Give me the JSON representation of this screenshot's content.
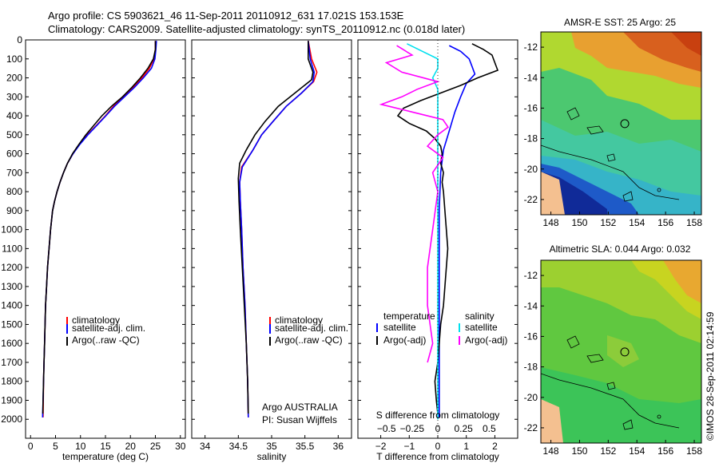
{
  "header": {
    "line1": "Argo profile: CS 5903621_46 11-Sep-2011 20110912_631 17.021S 153.153E",
    "line2": "Climatology: CARS2009. Satellite-adjusted climatology: synTS_20110912.nc (0.018d later)"
  },
  "colors": {
    "climatology": "#ff0000",
    "satellite": "#0000ff",
    "argo": "#000000",
    "satellite_s": "#00e0ee",
    "argo_s": "#ff00ff"
  },
  "chart_data": [
    {
      "type": "line",
      "id": "temperature",
      "xlabel": "temperature (deg C)",
      "ylabel": "",
      "xlim": [
        -1,
        31
      ],
      "ylim": [
        2100,
        0
      ],
      "xticks": [
        0,
        5,
        10,
        15,
        20,
        25,
        30
      ],
      "xticklabels": [
        "0",
        "5",
        "10",
        "15",
        "20",
        "25",
        "30"
      ],
      "yticks": [
        0,
        100,
        200,
        300,
        400,
        500,
        600,
        700,
        800,
        900,
        1000,
        1100,
        1200,
        1300,
        1400,
        1500,
        1600,
        1700,
        1800,
        1900,
        2000
      ],
      "legend": [
        "climatology",
        "satellite-adj. clim.",
        "Argo(..raw -QC)"
      ],
      "series": [
        {
          "name": "climatology",
          "color": "#ff0000",
          "points": [
            [
              25,
              5
            ],
            [
              25.0,
              50
            ],
            [
              24.7,
              100
            ],
            [
              23.8,
              150
            ],
            [
              22.3,
              200
            ],
            [
              20.5,
              250
            ],
            [
              18.6,
              300
            ],
            [
              16.6,
              350
            ],
            [
              15.0,
              400
            ],
            [
              13.2,
              450
            ],
            [
              11.4,
              500
            ],
            [
              9.8,
              550
            ],
            [
              8.5,
              600
            ],
            [
              7.4,
              650
            ],
            [
              6.6,
              700
            ],
            [
              5.9,
              750
            ],
            [
              5.3,
              800
            ],
            [
              4.8,
              850
            ],
            [
              4.4,
              900
            ],
            [
              4.0,
              1000
            ],
            [
              3.7,
              1100
            ],
            [
              3.4,
              1200
            ],
            [
              3.2,
              1300
            ],
            [
              3.0,
              1400
            ],
            [
              2.9,
              1500
            ],
            [
              2.8,
              1600
            ],
            [
              2.7,
              1700
            ],
            [
              2.6,
              1800
            ],
            [
              2.55,
              1900
            ],
            [
              2.5,
              1990
            ]
          ]
        },
        {
          "name": "satellite-adj. clim.",
          "color": "#0000ff",
          "points": [
            [
              25.2,
              5
            ],
            [
              25.1,
              50
            ],
            [
              24.9,
              100
            ],
            [
              24.2,
              150
            ],
            [
              22.6,
              200
            ],
            [
              20.8,
              250
            ],
            [
              18.8,
              300
            ],
            [
              16.8,
              350
            ],
            [
              15.1,
              400
            ],
            [
              13.3,
              450
            ],
            [
              11.5,
              500
            ],
            [
              9.9,
              550
            ],
            [
              8.5,
              600
            ],
            [
              7.4,
              650
            ],
            [
              6.6,
              700
            ],
            [
              5.9,
              750
            ],
            [
              5.3,
              800
            ],
            [
              4.8,
              850
            ],
            [
              4.4,
              900
            ],
            [
              4.0,
              1000
            ],
            [
              3.7,
              1100
            ],
            [
              3.4,
              1200
            ],
            [
              3.2,
              1300
            ],
            [
              3.0,
              1400
            ],
            [
              2.9,
              1500
            ],
            [
              2.8,
              1600
            ],
            [
              2.7,
              1700
            ],
            [
              2.6,
              1800
            ],
            [
              2.5,
              1900
            ],
            [
              2.4,
              1990
            ]
          ]
        },
        {
          "name": "Argo(..raw -QC)",
          "color": "#000000",
          "points": [
            [
              25.0,
              5
            ],
            [
              25.0,
              50
            ],
            [
              24.6,
              100
            ],
            [
              23.5,
              150
            ],
            [
              22.0,
              200
            ],
            [
              20.3,
              250
            ],
            [
              18.4,
              300
            ],
            [
              16.2,
              350
            ],
            [
              14.3,
              400
            ],
            [
              12.7,
              450
            ],
            [
              11.1,
              500
            ],
            [
              9.7,
              550
            ],
            [
              8.4,
              600
            ],
            [
              7.4,
              650
            ],
            [
              6.6,
              700
            ],
            [
              5.9,
              750
            ],
            [
              5.3,
              800
            ],
            [
              4.8,
              850
            ],
            [
              4.4,
              900
            ],
            [
              4.0,
              1000
            ],
            [
              3.7,
              1100
            ],
            [
              3.4,
              1200
            ],
            [
              3.2,
              1300
            ],
            [
              3.0,
              1400
            ],
            [
              2.9,
              1500
            ],
            [
              2.8,
              1600
            ],
            [
              2.7,
              1700
            ],
            [
              2.6,
              1800
            ],
            [
              2.5,
              1900
            ],
            [
              2.45,
              1970
            ]
          ]
        }
      ]
    },
    {
      "type": "line",
      "id": "salinity",
      "xlabel": "salinity",
      "xlim": [
        33.8,
        36.2
      ],
      "ylim": [
        2100,
        0
      ],
      "xticks": [
        34,
        34.5,
        35,
        35.5,
        36
      ],
      "xticklabels": [
        "34",
        "34.5",
        "35",
        "35.5",
        "36"
      ],
      "legend": [
        "climatology",
        "satellite-adj. clim.",
        "Argo(..raw -QC)"
      ],
      "annotation_1": "Argo AUSTRALIA",
      "annotation_2": "PI: Susan Wijffels",
      "series": [
        {
          "name": "climatology",
          "color": "#ff0000",
          "points": [
            [
              35.55,
              5
            ],
            [
              35.6,
              100
            ],
            [
              35.68,
              170
            ],
            [
              35.63,
              220
            ],
            [
              35.45,
              280
            ],
            [
              35.22,
              350
            ],
            [
              35.02,
              430
            ],
            [
              34.85,
              500
            ],
            [
              34.72,
              580
            ],
            [
              34.55,
              670
            ],
            [
              34.52,
              750
            ],
            [
              34.53,
              850
            ],
            [
              34.55,
              1000
            ],
            [
              34.57,
              1200
            ],
            [
              34.6,
              1400
            ],
            [
              34.62,
              1600
            ],
            [
              34.64,
              1800
            ],
            [
              34.65,
              1990
            ]
          ]
        },
        {
          "name": "satellite-adj. clim.",
          "color": "#0000ff",
          "points": [
            [
              35.55,
              5
            ],
            [
              35.58,
              100
            ],
            [
              35.64,
              170
            ],
            [
              35.62,
              220
            ],
            [
              35.45,
              280
            ],
            [
              35.22,
              350
            ],
            [
              35.02,
              430
            ],
            [
              34.85,
              500
            ],
            [
              34.72,
              580
            ],
            [
              34.56,
              670
            ],
            [
              34.52,
              750
            ],
            [
              34.53,
              850
            ],
            [
              34.55,
              1000
            ],
            [
              34.57,
              1200
            ],
            [
              34.6,
              1400
            ],
            [
              34.62,
              1600
            ],
            [
              34.64,
              1800
            ],
            [
              34.65,
              1990
            ]
          ]
        },
        {
          "name": "Argo(..raw -QC)",
          "color": "#000000",
          "points": [
            [
              35.55,
              5
            ],
            [
              35.55,
              100
            ],
            [
              35.62,
              170
            ],
            [
              35.6,
              210
            ],
            [
              35.35,
              280
            ],
            [
              35.1,
              350
            ],
            [
              34.9,
              430
            ],
            [
              34.75,
              500
            ],
            [
              34.62,
              580
            ],
            [
              34.52,
              650
            ],
            [
              34.5,
              730
            ],
            [
              34.51,
              850
            ],
            [
              34.53,
              1000
            ],
            [
              34.56,
              1200
            ],
            [
              34.59,
              1400
            ],
            [
              34.62,
              1600
            ],
            [
              34.64,
              1800
            ],
            [
              34.65,
              1970
            ]
          ]
        }
      ]
    },
    {
      "type": "line",
      "id": "differences",
      "xlabel_bottom": "T difference from climatology",
      "xlabel_top": "S difference from climatology",
      "xlim": [
        -2.8,
        2.8
      ],
      "ylim": [
        2100,
        0
      ],
      "xticks_T": [
        -2,
        -1,
        0,
        1,
        2
      ],
      "xticklabels_T": [
        "−2",
        "−1",
        "0",
        "1",
        "2"
      ],
      "xticks_S": [
        -0.5,
        -0.25,
        0,
        0.25,
        0.5
      ],
      "xticklabels_S": [
        "−0.5",
        "−0.25",
        "0",
        "0.25",
        "0.5"
      ],
      "legend_t_title": "temperature",
      "legend_s_title": "salinity",
      "legend": [
        "satellite",
        "Argo(-adj)",
        "satellite",
        "Argo(-adj)"
      ],
      "series": [
        {
          "name": "T satellite",
          "color": "#0000ff",
          "points": [
            [
              0.4,
              30
            ],
            [
              0.8,
              60
            ],
            [
              1.1,
              100
            ],
            [
              1.2,
              140
            ],
            [
              1.3,
              180
            ],
            [
              1.0,
              230
            ],
            [
              0.8,
              300
            ],
            [
              0.6,
              380
            ],
            [
              0.4,
              480
            ],
            [
              0.2,
              580
            ],
            [
              0.1,
              700
            ],
            [
              0.05,
              900
            ],
            [
              0.05,
              1200
            ],
            [
              0.05,
              1500
            ],
            [
              0.05,
              1800
            ],
            [
              0.05,
              1990
            ]
          ]
        },
        {
          "name": "T Argo(-adj)",
          "color": "#000000",
          "points": [
            [
              1.2,
              20
            ],
            [
              1.6,
              50
            ],
            [
              1.9,
              80
            ],
            [
              2.0,
              120
            ],
            [
              2.1,
              160
            ],
            [
              1.4,
              200
            ],
            [
              0.8,
              240
            ],
            [
              0.1,
              280
            ],
            [
              -0.6,
              320
            ],
            [
              -1.2,
              360
            ],
            [
              -1.4,
              400
            ],
            [
              -1.0,
              440
            ],
            [
              -0.4,
              480
            ],
            [
              -0.1,
              520
            ],
            [
              0.1,
              560
            ],
            [
              0.15,
              600
            ],
            [
              0.1,
              650
            ],
            [
              0.2,
              700
            ],
            [
              0.15,
              750
            ],
            [
              0.2,
              800
            ],
            [
              0.25,
              900
            ],
            [
              0.3,
              1000
            ],
            [
              0.35,
              1100
            ],
            [
              0.3,
              1200
            ],
            [
              0.25,
              1300
            ],
            [
              0.2,
              1400
            ],
            [
              0.1,
              1500
            ],
            [
              0.05,
              1600
            ],
            [
              0.0,
              1700
            ],
            [
              -0.1,
              1800
            ],
            [
              -0.05,
              1900
            ],
            [
              0.0,
              1970
            ]
          ]
        },
        {
          "name": "S satellite",
          "color": "#00e0ee",
          "points": [
            [
              -0.3,
              20
            ],
            [
              -0.15,
              60
            ],
            [
              0.0,
              100
            ],
            [
              0.0,
              150
            ],
            [
              -0.05,
              200
            ],
            [
              0.0,
              260
            ],
            [
              0.0,
              320
            ],
            [
              0.0,
              400
            ],
            [
              0.0,
              600
            ],
            [
              0.0,
              900
            ],
            [
              0.0,
              1200
            ],
            [
              0.0,
              1500
            ],
            [
              0.0,
              1800
            ],
            [
              0.0,
              2000
            ]
          ]
        },
        {
          "name": "S Argo(-adj)",
          "color": "#ff00ff",
          "points": [
            [
              -0.4,
              30
            ],
            [
              -0.25,
              80
            ],
            [
              -0.5,
              120
            ],
            [
              -0.35,
              170
            ],
            [
              0.0,
              220
            ],
            [
              -0.2,
              260
            ],
            [
              -0.35,
              300
            ],
            [
              -0.55,
              340
            ],
            [
              -0.25,
              380
            ],
            [
              0.05,
              420
            ],
            [
              0.1,
              460
            ],
            [
              0.0,
              500
            ],
            [
              -0.1,
              560
            ],
            [
              0.05,
              620
            ],
            [
              -0.05,
              700
            ],
            [
              0.0,
              800
            ],
            [
              -0.05,
              1000
            ],
            [
              -0.1,
              1200
            ],
            [
              -0.1,
              1400
            ],
            [
              -0.05,
              1600
            ],
            [
              -0.1,
              1700
            ]
          ]
        }
      ]
    }
  ],
  "maps": {
    "sst_title": "AMSR-E SST: 25 Argo: 25",
    "sla_title": "Altimetric SLA: 0.044 Argo: 0.032",
    "lon_ticks": [
      148,
      150,
      152,
      154,
      156,
      158
    ],
    "lon_labels": [
      "148",
      "150",
      "152",
      "154",
      "156",
      "158"
    ],
    "lat_ticks": [
      -12,
      -14,
      -16,
      -18,
      -20,
      -22
    ],
    "lat_labels": [
      "-12",
      "-14",
      "-16",
      "-18",
      "-20",
      "-22"
    ],
    "float_lon": 153.153,
    "float_lat": -17.021
  },
  "footer": {
    "stamp": "©IMOS 28-Sep-2011 02:14:59"
  }
}
